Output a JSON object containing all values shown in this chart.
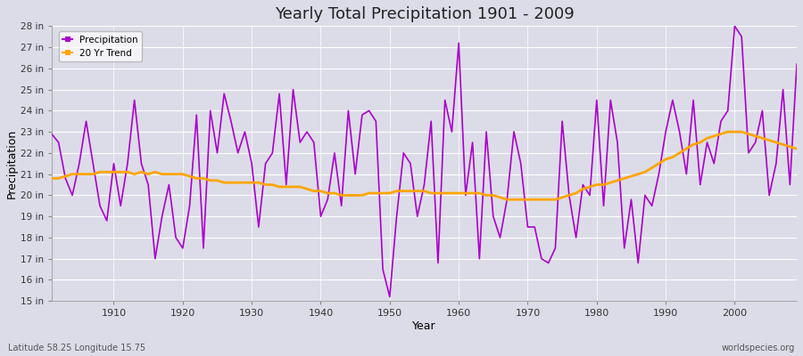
{
  "title": "Yearly Total Precipitation 1901 - 2009",
  "xlabel": "Year",
  "ylabel": "Precipitation",
  "subtitle_left": "Latitude 58.25 Longitude 15.75",
  "watermark": "worldspecies.org",
  "ylim": [
    15,
    28
  ],
  "yticks": [
    15,
    16,
    17,
    18,
    19,
    20,
    21,
    22,
    23,
    24,
    25,
    26,
    27,
    28
  ],
  "ytick_labels": [
    "15 in",
    "16 in",
    "17 in",
    "18 in",
    "19 in",
    "20 in",
    "21 in",
    "22 in",
    "23 in",
    "24 in",
    "25 in",
    "26 in",
    "27 in",
    "28 in"
  ],
  "xlim": [
    1901,
    2009
  ],
  "precip_color": "#AA00CC",
  "trend_color": "#FFA500",
  "bg_color": "#DCDCE8",
  "legend_entries": [
    "Precipitation",
    "20 Yr Trend"
  ],
  "years": [
    1901,
    1902,
    1903,
    1904,
    1905,
    1906,
    1907,
    1908,
    1909,
    1910,
    1911,
    1912,
    1913,
    1914,
    1915,
    1916,
    1917,
    1918,
    1919,
    1920,
    1921,
    1922,
    1923,
    1924,
    1925,
    1926,
    1927,
    1928,
    1929,
    1930,
    1931,
    1932,
    1933,
    1934,
    1935,
    1936,
    1937,
    1938,
    1939,
    1940,
    1941,
    1942,
    1943,
    1944,
    1945,
    1946,
    1947,
    1948,
    1949,
    1950,
    1951,
    1952,
    1953,
    1954,
    1955,
    1956,
    1957,
    1958,
    1959,
    1960,
    1961,
    1962,
    1963,
    1964,
    1965,
    1966,
    1967,
    1968,
    1969,
    1970,
    1971,
    1972,
    1973,
    1974,
    1975,
    1976,
    1977,
    1978,
    1979,
    1980,
    1981,
    1982,
    1983,
    1984,
    1985,
    1986,
    1987,
    1988,
    1989,
    1990,
    1991,
    1992,
    1993,
    1994,
    1995,
    1996,
    1997,
    1998,
    1999,
    2000,
    2001,
    2002,
    2003,
    2004,
    2005,
    2006,
    2007,
    2008,
    2009
  ],
  "precip": [
    22.9,
    22.5,
    20.8,
    20.0,
    21.5,
    23.5,
    21.5,
    19.5,
    18.8,
    21.5,
    19.5,
    21.5,
    24.5,
    21.5,
    20.5,
    17.0,
    19.0,
    20.5,
    18.0,
    17.5,
    19.5,
    23.8,
    17.5,
    24.0,
    22.0,
    24.8,
    23.5,
    22.0,
    23.0,
    21.5,
    18.5,
    21.5,
    22.0,
    24.8,
    20.5,
    25.0,
    22.5,
    23.0,
    22.5,
    19.0,
    19.8,
    22.0,
    19.5,
    24.0,
    21.0,
    23.8,
    24.0,
    23.5,
    16.5,
    15.2,
    19.0,
    22.0,
    21.5,
    19.0,
    20.5,
    23.5,
    16.8,
    24.5,
    23.0,
    27.2,
    20.0,
    22.5,
    17.0,
    23.0,
    19.0,
    18.0,
    19.8,
    23.0,
    21.5,
    18.5,
    18.5,
    17.0,
    16.8,
    17.5,
    23.5,
    20.0,
    18.0,
    20.5,
    20.0,
    24.5,
    19.5,
    24.5,
    22.5,
    17.5,
    19.8,
    16.8,
    20.0,
    19.5,
    21.0,
    23.0,
    24.5,
    23.0,
    21.0,
    24.5,
    20.5,
    22.5,
    21.5,
    23.5,
    24.0,
    28.0,
    27.5,
    22.0,
    22.5,
    24.0,
    20.0,
    21.5,
    25.0,
    20.5,
    26.2
  ],
  "trend": [
    20.8,
    20.8,
    20.9,
    21.0,
    21.0,
    21.0,
    21.0,
    21.1,
    21.1,
    21.1,
    21.1,
    21.1,
    21.0,
    21.1,
    21.0,
    21.1,
    21.0,
    21.0,
    21.0,
    21.0,
    20.9,
    20.8,
    20.8,
    20.7,
    20.7,
    20.6,
    20.6,
    20.6,
    20.6,
    20.6,
    20.6,
    20.5,
    20.5,
    20.4,
    20.4,
    20.4,
    20.4,
    20.3,
    20.2,
    20.2,
    20.1,
    20.1,
    20.0,
    20.0,
    20.0,
    20.0,
    20.1,
    20.1,
    20.1,
    20.1,
    20.2,
    20.2,
    20.2,
    20.2,
    20.2,
    20.1,
    20.1,
    20.1,
    20.1,
    20.1,
    20.1,
    20.1,
    20.1,
    20.0,
    20.0,
    19.9,
    19.8,
    19.8,
    19.8,
    19.8,
    19.8,
    19.8,
    19.8,
    19.8,
    19.9,
    20.0,
    20.1,
    20.3,
    20.4,
    20.5,
    20.5,
    20.6,
    20.7,
    20.8,
    20.9,
    21.0,
    21.1,
    21.3,
    21.5,
    21.7,
    21.8,
    22.0,
    22.2,
    22.4,
    22.5,
    22.7,
    22.8,
    22.9,
    23.0,
    23.0,
    23.0,
    22.9,
    22.8,
    22.7,
    22.6,
    22.5,
    22.4,
    22.3,
    22.2
  ]
}
